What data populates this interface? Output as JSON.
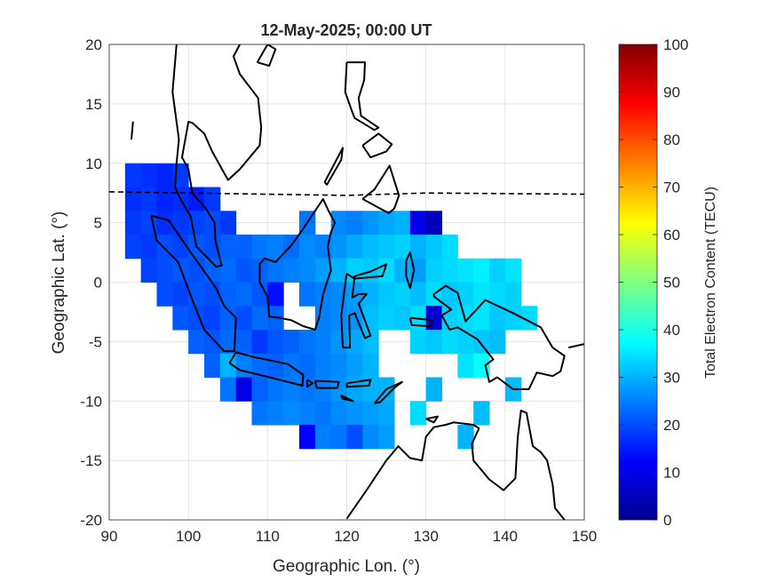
{
  "chart_data": {
    "type": "heatmap",
    "title": "12-May-2025; 00:00 UT",
    "xlabel": "Geographic Lon. (°)",
    "ylabel": "Geographic Lat. (°)",
    "xlim": [
      90,
      150
    ],
    "ylim": [
      -20,
      20
    ],
    "xticks": [
      "90",
      "100",
      "110",
      "120",
      "130",
      "140",
      "150"
    ],
    "yticks": [
      "20",
      "15",
      "10",
      "5",
      "0",
      "-5",
      "-10",
      "-15",
      "-20"
    ],
    "grid": true,
    "colorbar": {
      "label": "Total Electron Content (TECU)",
      "range": [
        0,
        100
      ],
      "ticks": [
        "100",
        "90",
        "80",
        "70",
        "60",
        "50",
        "40",
        "30",
        "20",
        "10",
        "0"
      ],
      "colormap": "jet"
    },
    "magnetic_equator_lat": [
      [
        90,
        7.6
      ],
      [
        110,
        7.4
      ],
      [
        120,
        7.3
      ],
      [
        130,
        7.5
      ],
      [
        150,
        7.4
      ]
    ],
    "cell_size_deg": 2,
    "rows": [
      {
        "lat": 9,
        "lon_start": 93,
        "tec": [
          18,
          17,
          16,
          18,
          null,
          null,
          null,
          null,
          null,
          null,
          null,
          null,
          null,
          null,
          null,
          null,
          null,
          null,
          null,
          null,
          null,
          null,
          null,
          null,
          null,
          null,
          null
        ]
      },
      {
        "lat": 7,
        "lon_start": 93,
        "tec": [
          17,
          18,
          16,
          17,
          15,
          18,
          null,
          null,
          null,
          null,
          null,
          null,
          null,
          null,
          null,
          null,
          null,
          null,
          null,
          null,
          null,
          null,
          null,
          null,
          null,
          null,
          null
        ]
      },
      {
        "lat": 5,
        "lon_start": 93,
        "tec": [
          18,
          19,
          17,
          18,
          19,
          20,
          18,
          null,
          null,
          null,
          null,
          24,
          null,
          26,
          25,
          27,
          29,
          30,
          10,
          6,
          null,
          null,
          null,
          null,
          null,
          null,
          null
        ]
      },
      {
        "lat": 3,
        "lon_start": 93,
        "tec": [
          19,
          18,
          20,
          19,
          21,
          20,
          22,
          22,
          24,
          25,
          23,
          26,
          25,
          27,
          29,
          31,
          32,
          33,
          30,
          32,
          34,
          null,
          null,
          null,
          null,
          null,
          null
        ]
      },
      {
        "lat": 1,
        "lon_start": 93,
        "tec": [
          null,
          19,
          20,
          21,
          20,
          22,
          23,
          21,
          22,
          24,
          25,
          26,
          28,
          30,
          33,
          32,
          34,
          30,
          28,
          33,
          34,
          35,
          36,
          33,
          35,
          null,
          null
        ]
      },
      {
        "lat": -1,
        "lon_start": 93,
        "tec": [
          null,
          null,
          20,
          19,
          21,
          20,
          22,
          23,
          21,
          14,
          null,
          24,
          25,
          26,
          28,
          30,
          32,
          33,
          31,
          34,
          32,
          33,
          35,
          34,
          33,
          null,
          null
        ]
      },
      {
        "lat": -3,
        "lon_start": 93,
        "tec": [
          null,
          null,
          null,
          21,
          20,
          19,
          22,
          20,
          23,
          22,
          null,
          null,
          25,
          26,
          27,
          31,
          33,
          32,
          34,
          8,
          33,
          34,
          35,
          32,
          33,
          34,
          null
        ]
      },
      {
        "lat": -5,
        "lon_start": 93,
        "tec": [
          null,
          null,
          null,
          null,
          22,
          21,
          23,
          22,
          18,
          21,
          22,
          24,
          25,
          27,
          29,
          31,
          null,
          null,
          33,
          32,
          34,
          33,
          32,
          31,
          null,
          null,
          null
        ]
      },
      {
        "lat": -7,
        "lon_start": 93,
        "tec": [
          null,
          null,
          null,
          null,
          null,
          22,
          30,
          25,
          23,
          22,
          24,
          23,
          25,
          26,
          28,
          30,
          null,
          null,
          null,
          null,
          null,
          35,
          38,
          null,
          null,
          null,
          null
        ]
      },
      {
        "lat": -9,
        "lon_start": 93,
        "tec": [
          null,
          null,
          null,
          null,
          null,
          null,
          24,
          10,
          22,
          24,
          25,
          24,
          25,
          27,
          29,
          30,
          30,
          null,
          null,
          30,
          null,
          null,
          null,
          null,
          31,
          null,
          null
        ]
      },
      {
        "lat": -11,
        "lon_start": 93,
        "tec": [
          null,
          null,
          null,
          null,
          null,
          null,
          null,
          null,
          24,
          25,
          26,
          25,
          24,
          26,
          27,
          28,
          29,
          null,
          34,
          null,
          null,
          null,
          31,
          null,
          null,
          null,
          null
        ]
      },
      {
        "lat": -13,
        "lon_start": 93,
        "tec": [
          null,
          null,
          null,
          null,
          null,
          null,
          null,
          null,
          null,
          null,
          null,
          12,
          25,
          24,
          20,
          26,
          28,
          null,
          null,
          null,
          null,
          30,
          null,
          null,
          null,
          null,
          null
        ]
      }
    ]
  }
}
